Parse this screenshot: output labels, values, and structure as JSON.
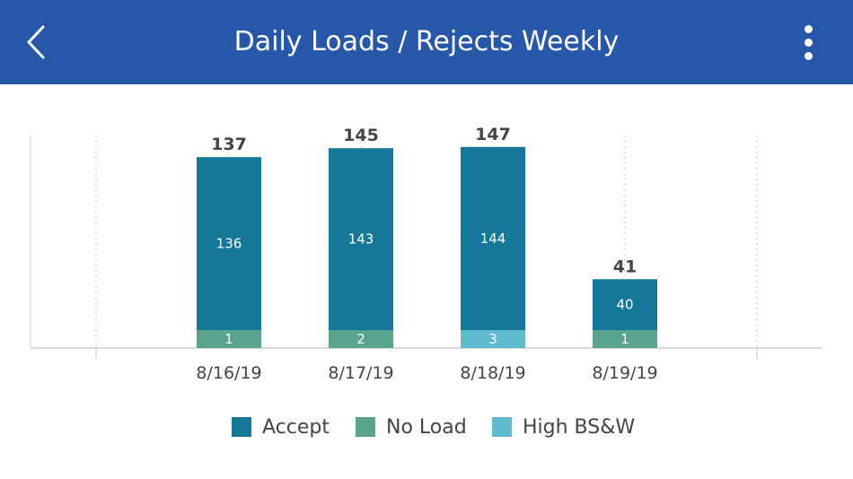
{
  "header": {
    "title": "Daily Loads / Rejects Weekly",
    "back_icon": "chevron-left-icon",
    "menu_icon": "more-vertical-icon",
    "background_color": "#2657a8"
  },
  "chart_data": {
    "type": "bar",
    "stacked": true,
    "categories": [
      "8/16/19",
      "8/17/19",
      "8/18/19",
      "8/19/19"
    ],
    "totals": [
      137,
      145,
      147,
      41
    ],
    "series": [
      {
        "name": "No Load",
        "values": [
          1,
          2,
          0,
          1
        ],
        "color": "#5aa48f"
      },
      {
        "name": "High BS&W",
        "values": [
          0,
          0,
          3,
          0
        ],
        "color": "#5fbccf"
      },
      {
        "name": "Accept",
        "values": [
          136,
          143,
          144,
          40
        ],
        "color": "#157799"
      }
    ],
    "ylim": [
      0,
      165
    ],
    "grid": "vertical-dotted",
    "legend_position": "bottom"
  },
  "legend": {
    "items": [
      {
        "label": "Accept",
        "color": "#157799"
      },
      {
        "label": "No Load",
        "color": "#5aa48f"
      },
      {
        "label": "High BS&W",
        "color": "#5fbccf"
      }
    ]
  }
}
